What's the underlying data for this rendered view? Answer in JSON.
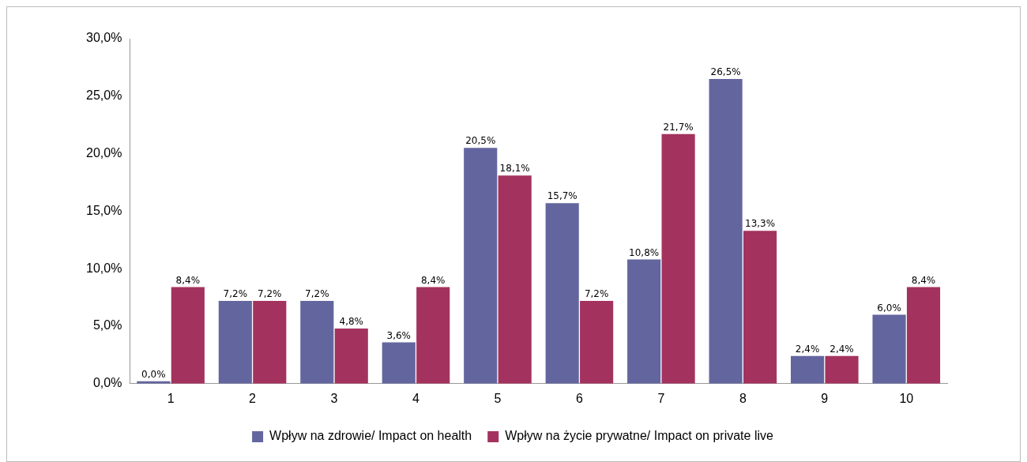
{
  "chart_data": {
    "type": "bar",
    "categories": [
      "1",
      "2",
      "3",
      "4",
      "5",
      "6",
      "7",
      "8",
      "9",
      "10"
    ],
    "series": [
      {
        "name": "Wpływ na zdrowie/ Impact on health",
        "color": "#63669e",
        "values": [
          0.0,
          7.2,
          7.2,
          3.6,
          20.5,
          15.7,
          10.8,
          26.5,
          2.4,
          6.0
        ],
        "value_labels": [
          "0,0%",
          "7,2%",
          "7,2%",
          "3,6%",
          "20,5%",
          "15,7%",
          "10,8%",
          "26,5%",
          "2,4%",
          "6,0%"
        ]
      },
      {
        "name": "Wpływ na życie prywatne/ Impact on private live",
        "color": "#a3335e",
        "values": [
          8.4,
          7.2,
          4.8,
          8.4,
          18.1,
          7.2,
          21.7,
          13.3,
          2.4,
          8.4
        ],
        "value_labels": [
          "8,4%",
          "7,2%",
          "4,8%",
          "8,4%",
          "18,1%",
          "7,2%",
          "21,7%",
          "13,3%",
          "2,4%",
          "8,4%"
        ]
      }
    ],
    "ylim": [
      0,
      30
    ],
    "yticks": [
      {
        "value": 0,
        "label": "0,0%"
      },
      {
        "value": 5,
        "label": "5,0%"
      },
      {
        "value": 10,
        "label": "10,0%"
      },
      {
        "value": 15,
        "label": "15,0%"
      },
      {
        "value": 20,
        "label": "20,0%"
      },
      {
        "value": 25,
        "label": "25,0%"
      },
      {
        "value": 30,
        "label": "30,0%"
      }
    ],
    "grid": false,
    "legend": "bottom"
  }
}
